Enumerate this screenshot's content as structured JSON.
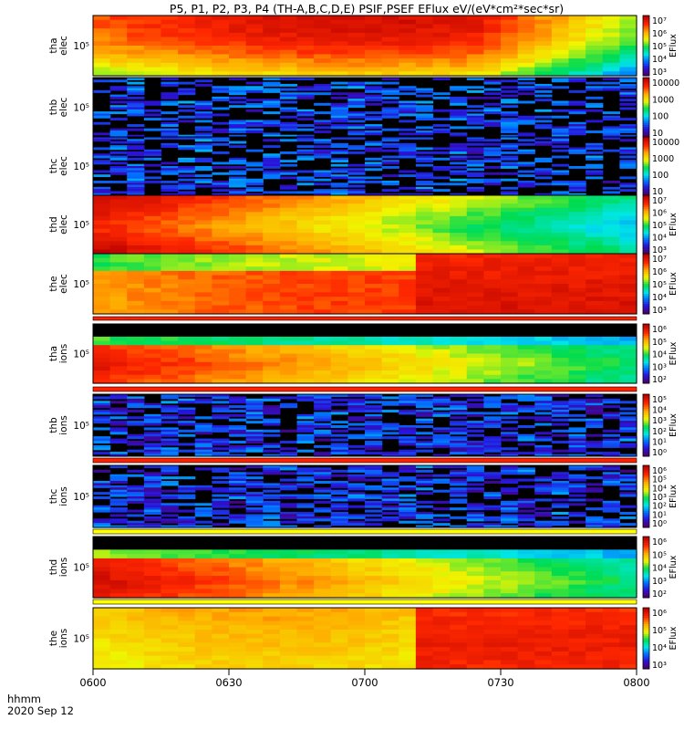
{
  "chart_data": {
    "type": "heatmap",
    "title": "P5, P1, P2, P3, P4 (TH-A,B,C,D,E) PSIF,PSEF EFlux eV/(eV*cm²*sec*sr)",
    "x_ticks": [
      "0600",
      "0630",
      "0700",
      "0730",
      "0800"
    ],
    "x_corner_labels": [
      "hhmm",
      "2020 Sep 12"
    ],
    "xlim": [
      "06:00",
      "08:00"
    ],
    "panels": [
      {
        "label": [
          "tha",
          "elec"
        ],
        "ytick": "10⁵",
        "cbar_ticks": [
          "10⁷",
          "10⁶",
          "10⁵",
          "10⁴",
          "10³"
        ],
        "cbar_title": "EFlux",
        "cbar_range": "1e3-1e7",
        "profile": "warm-peak"
      },
      {
        "label": [
          "thb",
          "elec"
        ],
        "ytick": "10⁵",
        "cbar_ticks": [
          "10000",
          "1000",
          "100",
          "10"
        ],
        "cbar_title": "",
        "cbar_range": "1-1e4",
        "profile": "noise"
      },
      {
        "label": [
          "thc",
          "elec"
        ],
        "ytick": "10⁵",
        "cbar_ticks": [
          "10000",
          "1000",
          "100",
          "10"
        ],
        "cbar_title": "",
        "cbar_range": "1-1e4",
        "profile": "noise"
      },
      {
        "label": [
          "thd",
          "elec"
        ],
        "ytick": "10⁵",
        "cbar_ticks": [
          "10⁷",
          "10⁶",
          "10⁵",
          "10⁴",
          "10³"
        ],
        "cbar_title": "EFlux",
        "cbar_range": "1e3-1e7",
        "profile": "decay"
      },
      {
        "label": [
          "the",
          "elec"
        ],
        "ytick": "10⁵",
        "cbar_ticks": [
          "10⁷",
          "10⁶",
          "10⁵",
          "10⁴",
          "10³"
        ],
        "cbar_title": "EFlux",
        "cbar_range": "1e3-1e7",
        "profile": "step"
      },
      {
        "label": [
          "tha",
          "ions"
        ],
        "ytick": "10⁵",
        "cbar_ticks": [
          "10⁶",
          "10⁵",
          "10⁴",
          "10³",
          "10²"
        ],
        "cbar_title": "EFlux",
        "cbar_range": "1e2-1e6",
        "profile": "ion"
      },
      {
        "label": [
          "thb",
          "ions"
        ],
        "ytick": "10⁵",
        "cbar_ticks": [
          "10⁵",
          "10⁴",
          "10³",
          "10²",
          "10¹",
          "10⁰"
        ],
        "cbar_title": "EFlux",
        "cbar_range": "1e0-1e5",
        "profile": "ion-noise"
      },
      {
        "label": [
          "thc",
          "ions"
        ],
        "ytick": "10⁵",
        "cbar_ticks": [
          "10⁶",
          "10⁵",
          "10⁴",
          "10³",
          "10²",
          "10¹",
          "10⁰"
        ],
        "cbar_title": "EFlux",
        "cbar_range": "1e0-1e6",
        "profile": "ion-noise"
      },
      {
        "label": [
          "thd",
          "ions"
        ],
        "ytick": "10⁵",
        "cbar_ticks": [
          "10⁶",
          "10⁵",
          "10⁴",
          "10³",
          "10²"
        ],
        "cbar_title": "EFlux",
        "cbar_range": "1e2-1e6",
        "profile": "ion-decay"
      },
      {
        "label": [
          "the",
          "ions"
        ],
        "ytick": "10⁵",
        "cbar_ticks": [
          "10⁶",
          "10⁵",
          "10⁴",
          "10³"
        ],
        "cbar_title": "EFlux",
        "cbar_range": "1e3-1e6",
        "profile": "ion-step"
      }
    ]
  }
}
